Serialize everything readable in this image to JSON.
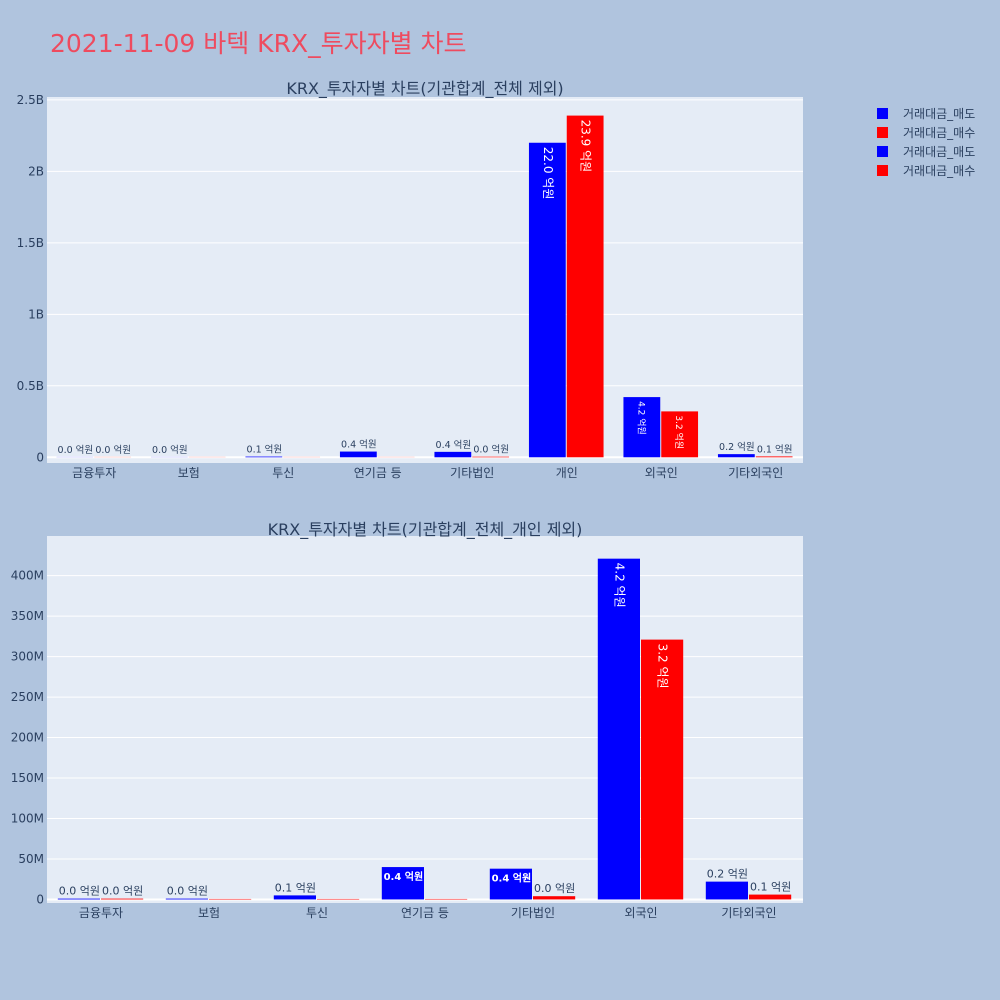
{
  "title": "2021-11-09 바텍 KRX_투자자별 차트",
  "legend": [
    {
      "name": "거래대금_매도",
      "color": "#0000ff"
    },
    {
      "name": "거래대금_매수",
      "color": "#ff0000"
    },
    {
      "name": "거래대금_매도",
      "color": "#0000ff"
    },
    {
      "name": "거래대금_매수",
      "color": "#ff0000"
    }
  ],
  "chart_data": [
    {
      "type": "bar",
      "title": "KRX_투자자별 차트(기관합계_전체 제외)",
      "categories": [
        "금융투자",
        "보험",
        "투신",
        "연기금 등",
        "기타법인",
        "개인",
        "외국인",
        "기타외국인"
      ],
      "ylim": [
        -40000000,
        2520000000
      ],
      "yticks": [
        {
          "v": 0,
          "label": "0"
        },
        {
          "v": 500000000,
          "label": "0.5B"
        },
        {
          "v": 1000000000,
          "label": "1B"
        },
        {
          "v": 1500000000,
          "label": "1.5B"
        },
        {
          "v": 2000000000,
          "label": "2B"
        },
        {
          "v": 2500000000,
          "label": "2.5B"
        }
      ],
      "series": [
        {
          "name": "거래대금_매도",
          "color": "#0000ff",
          "values": [
            1000000,
            1000000,
            5000000,
            40000000,
            38000000,
            2200000000,
            421000000,
            22000000
          ],
          "labels": [
            "0.0 억원",
            "0.0 억원",
            "0.1 억원",
            "0.4 억원",
            "0.4 억원",
            "22.0 억원",
            "4.2 억원",
            "0.2 억원"
          ]
        },
        {
          "name": "거래대금_매수",
          "color": "#ff0000",
          "values": [
            1000000,
            0,
            0,
            0,
            4000000,
            2390000000,
            321000000,
            6000000
          ],
          "labels": [
            "0.0 억원",
            "",
            "",
            "",
            "0.0 억원",
            "23.9 억원",
            "3.2 억원",
            "0.1 억원"
          ]
        }
      ],
      "grid": true
    },
    {
      "type": "bar",
      "title": "KRX_투자자별 차트(기관합계_전체_개인 제외)",
      "categories": [
        "금융투자",
        "보험",
        "투신",
        "연기금 등",
        "기타법인",
        "외국인",
        "기타외국인"
      ],
      "ylim": [
        -4400000,
        449000000
      ],
      "yticks": [
        {
          "v": 0,
          "label": "0"
        },
        {
          "v": 50000000,
          "label": "50M"
        },
        {
          "v": 100000000,
          "label": "100M"
        },
        {
          "v": 150000000,
          "label": "150M"
        },
        {
          "v": 200000000,
          "label": "200M"
        },
        {
          "v": 250000000,
          "label": "250M"
        },
        {
          "v": 300000000,
          "label": "300M"
        },
        {
          "v": 350000000,
          "label": "350M"
        },
        {
          "v": 400000000,
          "label": "400M"
        }
      ],
      "series": [
        {
          "name": "거래대금_매도",
          "color": "#0000ff",
          "values": [
            1000000,
            1000000,
            5000000,
            40000000,
            38000000,
            421000000,
            22000000
          ],
          "labels": [
            "0.0 억원",
            "0.0 억원",
            "0.1 억원",
            "0.4 억원",
            "0.4 억원",
            "4.2 억원",
            "0.2 억원"
          ]
        },
        {
          "name": "거래대금_매수",
          "color": "#ff0000",
          "values": [
            1000000,
            0,
            0,
            0,
            4000000,
            321000000,
            6000000
          ],
          "labels": [
            "0.0 억원",
            "",
            "",
            "",
            "0.0 억원",
            "3.2 억원",
            "0.1 억원"
          ]
        }
      ],
      "grid": true
    }
  ]
}
